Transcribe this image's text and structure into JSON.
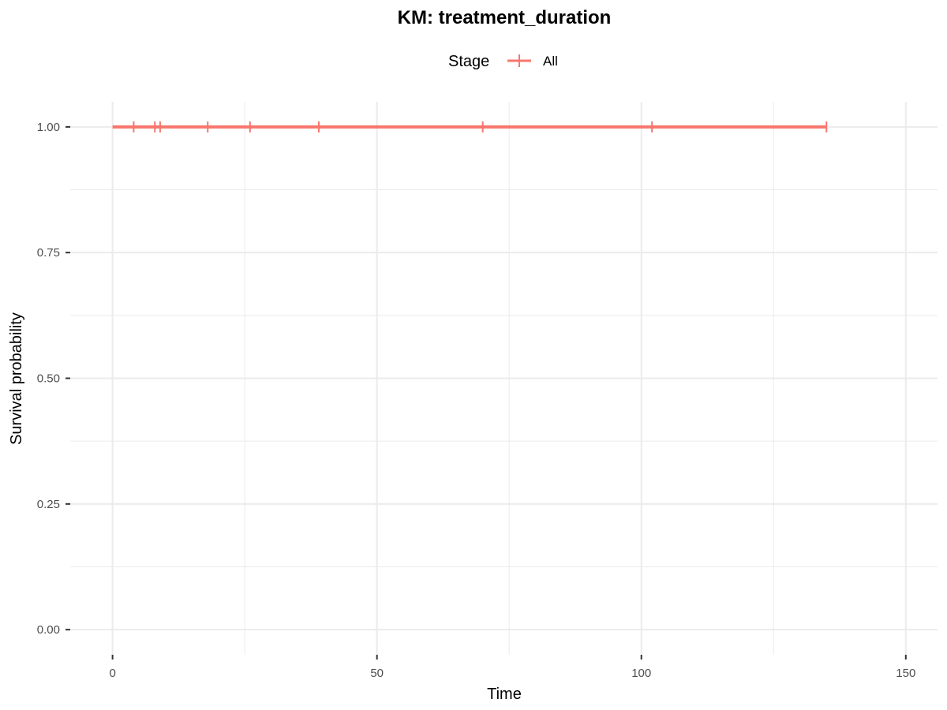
{
  "chart_data": {
    "type": "line",
    "subtype": "kaplan-meier step",
    "title": "KM: treatment_duration",
    "xlabel": "Time",
    "ylabel": "Survival probability",
    "xlim": [
      -8,
      156
    ],
    "ylim": [
      -0.05,
      1.05
    ],
    "x_ticks": [
      0,
      50,
      100,
      150
    ],
    "x_minor_ticks": [
      25,
      75,
      125
    ],
    "y_ticks": [
      0.0,
      0.25,
      0.5,
      0.75,
      1.0
    ],
    "y_tick_labels": [
      "0.00",
      "0.25",
      "0.50",
      "0.75",
      "1.00"
    ],
    "y_minor_ticks": [
      0.125,
      0.375,
      0.625,
      0.875
    ],
    "x_tick_labels": [
      "0",
      "50",
      "100",
      "150"
    ],
    "grid": true,
    "legend": {
      "title": "Stage",
      "position": "top"
    },
    "series": [
      {
        "name": "All",
        "color": "#F8766D",
        "x": [
          0,
          135
        ],
        "y": [
          1.0,
          1.0
        ],
        "censor_times": [
          4,
          8,
          9,
          18,
          26,
          39,
          70,
          102,
          135
        ]
      }
    ]
  }
}
